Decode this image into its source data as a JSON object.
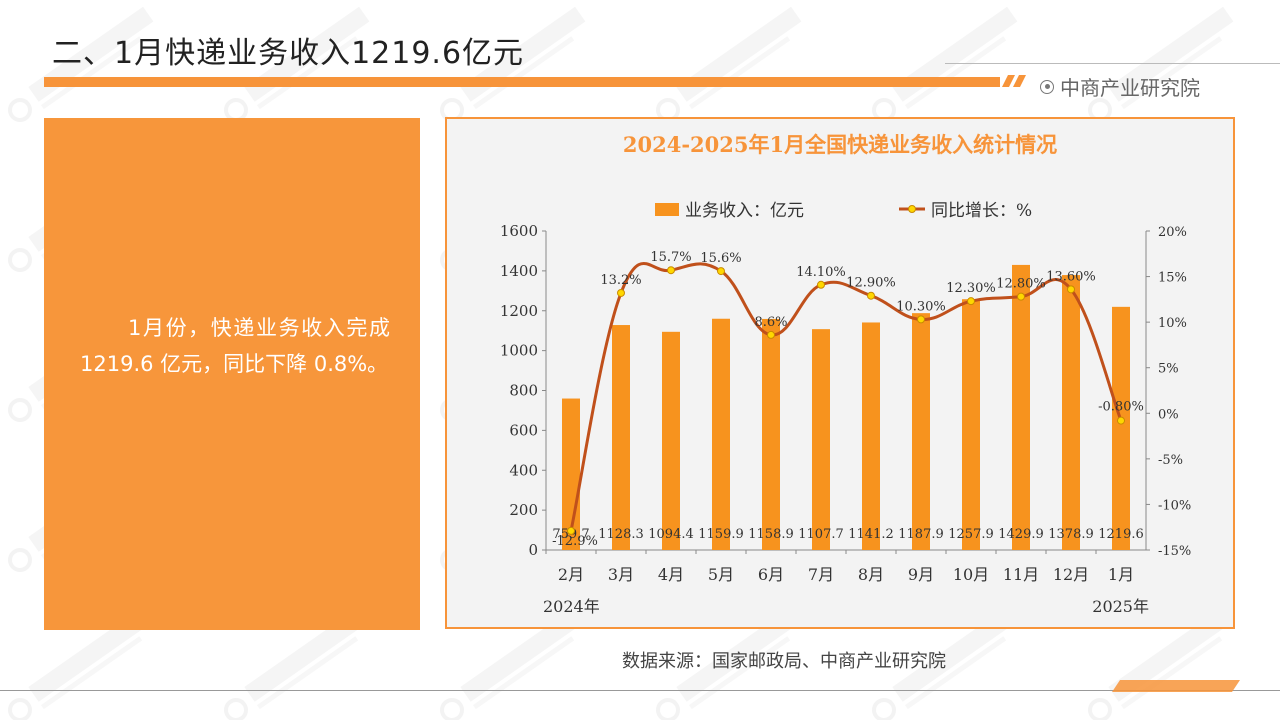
{
  "header": {
    "title": "二、1月快递业务收入1219.6亿元",
    "brand": "中商产业研究院"
  },
  "summary": {
    "text": "1月份，快递业务收入完成 1219.6 亿元，同比下降 0.8%。"
  },
  "source": {
    "text": "数据来源：国家邮政局、中商产业研究院"
  },
  "colors": {
    "accent": "#f7943a",
    "bar": "#f7931e",
    "line": "#c0501b",
    "marker": "#ffd700"
  },
  "chart_data": {
    "type": "bar",
    "title": "2024-2025年1月全国快递业务收入统计情况",
    "categories": [
      "2月",
      "3月",
      "4月",
      "5月",
      "6月",
      "7月",
      "8月",
      "9月",
      "10月",
      "11月",
      "12月",
      "1月"
    ],
    "year_labels": {
      "start": "2024年",
      "end": "2025年"
    },
    "series": [
      {
        "name": "业务收入：亿元",
        "type": "bar",
        "axis": "left",
        "values": [
          759.7,
          1128.3,
          1094.4,
          1159.9,
          1158.9,
          1107.7,
          1141.2,
          1187.9,
          1257.9,
          1429.9,
          1378.9,
          1219.6
        ],
        "labels": [
          "759.7",
          "1128.3",
          "1094.4",
          "1159.9",
          "1158.9",
          "1107.7",
          "1141.2",
          "1187.9",
          "1257.9",
          "1429.9",
          "1378.9",
          "1219.6"
        ]
      },
      {
        "name": "同比增长：%",
        "type": "line",
        "axis": "right",
        "values": [
          -12.9,
          13.2,
          15.7,
          15.6,
          8.6,
          14.1,
          12.9,
          10.3,
          12.3,
          12.8,
          13.6,
          -0.8
        ],
        "labels": [
          "-12.9%",
          "13.2%",
          "15.7%",
          "15.6%",
          "8.6%",
          "14.10%",
          "12.90%",
          "10.30%",
          "12.30%",
          "12.80%",
          "13.60%",
          "-0.80%"
        ]
      }
    ],
    "ylim_left": [
      0,
      1600
    ],
    "yticks_left": [
      "0",
      "200",
      "400",
      "600",
      "800",
      "1000",
      "1200",
      "1400",
      "1600"
    ],
    "ylim_right": [
      -15,
      20
    ],
    "yticks_right": [
      "-15%",
      "-10%",
      "-5%",
      "0%",
      "5%",
      "10%",
      "15%",
      "20%"
    ],
    "legend_position": "top-center",
    "grid": false
  }
}
